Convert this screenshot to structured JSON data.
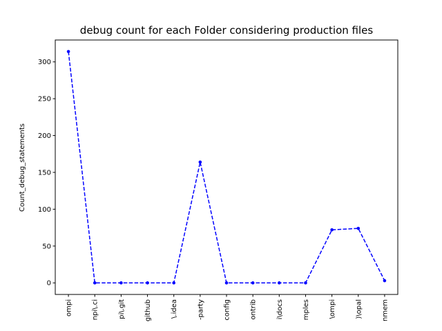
{
  "chart_data": {
    "type": "line",
    "title": "debug count for each Folder considering production files",
    "xlabel": "",
    "ylabel": "Count_debug_statements",
    "categories": [
      "ompi",
      "npi\\.ci",
      "pi\\.git",
      "github",
      "\\.idea",
      "-party",
      "config",
      "ontrib",
      "i\\docs",
      "mples",
      "\\ompi",
      ")\\opal",
      "nmem"
    ],
    "series": [
      {
        "values": [
          314,
          0,
          0,
          0,
          0,
          164,
          0,
          0,
          0,
          0,
          72,
          74,
          3
        ]
      }
    ],
    "ylim": [
      -15.7,
      329.7
    ],
    "yticks": [
      0,
      50,
      100,
      150,
      200,
      250,
      300
    ],
    "grid": false,
    "line_color": "#0000ff",
    "line_style": "dashed",
    "marker": "dot"
  }
}
